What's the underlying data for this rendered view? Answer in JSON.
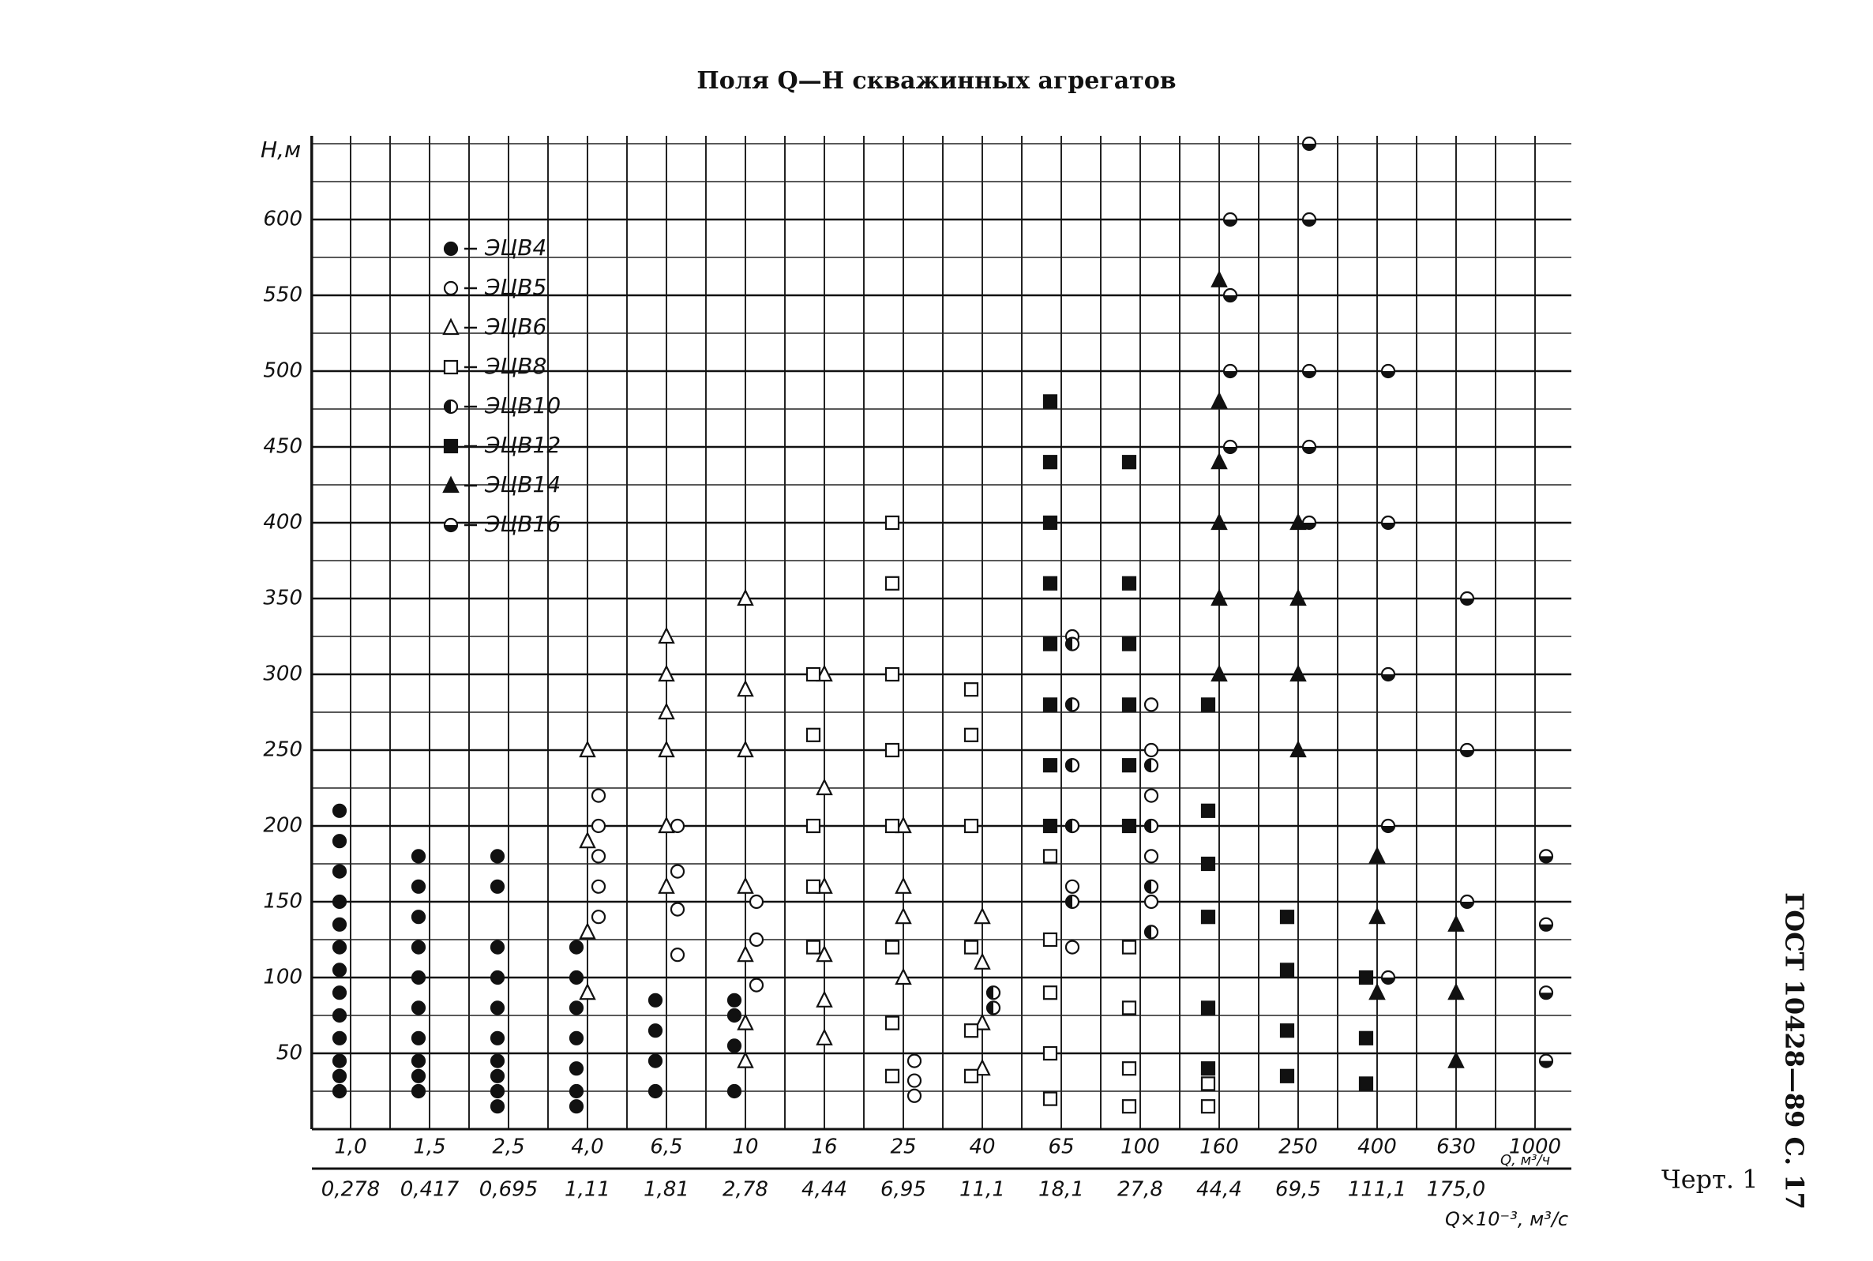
{
  "chart_data": {
    "type": "scatter",
    "title": "Поля Q—H скважинных агрегатов",
    "y_label": "H,м",
    "x_label": "Q, м³/ч",
    "x2_label": "Q×10⁻³, м³/с",
    "caption": "Черт. 1",
    "page_header": "ГОСТ 10428—89 С. 17",
    "categories": [
      "1,0",
      "1,5",
      "2,5",
      "4,0",
      "6,5",
      "10",
      "16",
      "25",
      "40",
      "65",
      "100",
      "160",
      "250",
      "400",
      "630",
      "1000"
    ],
    "categories2": [
      "0,278",
      "0,417",
      "0,695",
      "1,11",
      "1,81",
      "2,78",
      "4,44",
      "6,95",
      "11,1",
      "18,1",
      "27,8",
      "44,4",
      "69,5",
      "111,1",
      "175,0",
      null
    ],
    "ylim": [
      0,
      650
    ],
    "yticks": [
      50,
      100,
      150,
      200,
      250,
      300,
      350,
      400,
      450,
      500,
      550,
      600
    ],
    "grid": true,
    "series": [
      {
        "name": "ЭЦВ4",
        "marker": "circle",
        "fill": "solid",
        "color": "#111",
        "x": [
          "1,0",
          "1,0",
          "1,0",
          "1,0",
          "1,0",
          "1,0",
          "1,0",
          "1,0",
          "1,0",
          "1,0",
          "1,0",
          "1,0",
          "1,0",
          "1,5",
          "1,5",
          "1,5",
          "1,5",
          "1,5",
          "1,5",
          "1,5",
          "1,5",
          "1,5",
          "1,5",
          "2,5",
          "2,5",
          "2,5",
          "2,5",
          "2,5",
          "2,5",
          "2,5",
          "2,5",
          "2,5",
          "2,5",
          "4,0",
          "4,0",
          "4,0",
          "4,0",
          "4,0",
          "4,0",
          "4,0",
          "6,5",
          "6,5",
          "6,5",
          "6,5",
          "10",
          "10",
          "10",
          "10"
        ],
        "values": [
          25,
          35,
          45,
          60,
          75,
          90,
          105,
          120,
          135,
          150,
          170,
          190,
          210,
          25,
          35,
          45,
          60,
          80,
          100,
          120,
          140,
          160,
          180,
          15,
          25,
          35,
          45,
          60,
          80,
          100,
          120,
          160,
          180,
          15,
          25,
          40,
          60,
          80,
          100,
          120,
          25,
          45,
          65,
          85,
          25,
          55,
          75,
          85
        ]
      },
      {
        "name": "ЭЦВ5",
        "marker": "circle",
        "fill": "open",
        "color": "#111",
        "x": [
          "4,0",
          "4,0",
          "4,0",
          "4,0",
          "4,0",
          "6,5",
          "6,5",
          "6,5",
          "6,5",
          "10",
          "10",
          "10",
          "25",
          "25",
          "25",
          "65",
          "65",
          "65",
          "65",
          "65",
          "65",
          "100",
          "100",
          "100",
          "100",
          "100"
        ],
        "values": [
          140,
          160,
          180,
          200,
          220,
          115,
          145,
          170,
          200,
          95,
          125,
          150,
          22,
          32,
          45,
          120,
          160,
          200,
          240,
          280,
          325,
          150,
          180,
          220,
          250,
          280
        ]
      },
      {
        "name": "ЭЦВ6",
        "marker": "triangle",
        "fill": "open",
        "color": "#111",
        "x": [
          "4,0",
          "4,0",
          "4,0",
          "4,0",
          "6,5",
          "6,5",
          "6,5",
          "6,5",
          "6,5",
          "6,5",
          "10",
          "10",
          "10",
          "10",
          "10",
          "10",
          "10",
          "16",
          "16",
          "16",
          "16",
          "16",
          "16",
          "25",
          "25",
          "25",
          "25",
          "40",
          "40",
          "40",
          "40"
        ],
        "values": [
          90,
          130,
          190,
          250,
          160,
          200,
          250,
          275,
          300,
          325,
          45,
          70,
          115,
          160,
          250,
          290,
          350,
          60,
          85,
          115,
          160,
          225,
          300,
          100,
          140,
          160,
          200,
          40,
          70,
          110,
          140
        ]
      },
      {
        "name": "ЭЦВ8",
        "marker": "square",
        "fill": "open",
        "color": "#111",
        "x": [
          "16",
          "16",
          "16",
          "16",
          "16",
          "25",
          "25",
          "25",
          "25",
          "25",
          "25",
          "25",
          "25",
          "40",
          "40",
          "40",
          "40",
          "40",
          "40",
          "65",
          "65",
          "65",
          "65",
          "65",
          "100",
          "100",
          "100",
          "100",
          "160",
          "160"
        ],
        "values": [
          120,
          160,
          200,
          260,
          300,
          35,
          70,
          120,
          200,
          250,
          300,
          360,
          400,
          35,
          65,
          120,
          200,
          260,
          290,
          20,
          50,
          90,
          125,
          180,
          15,
          40,
          80,
          120,
          15,
          30
        ]
      },
      {
        "name": "ЭЦВ10",
        "marker": "circle",
        "fill": "half-left",
        "color": "#111",
        "x": [
          "40",
          "40",
          "65",
          "65",
          "65",
          "65",
          "65",
          "100",
          "100",
          "100",
          "100"
        ],
        "values": [
          80,
          90,
          150,
          200,
          240,
          280,
          320,
          130,
          160,
          200,
          240
        ]
      },
      {
        "name": "ЭЦВ12",
        "marker": "square",
        "fill": "solid",
        "color": "#111",
        "x": [
          "65",
          "65",
          "65",
          "65",
          "65",
          "65",
          "65",
          "65",
          "100",
          "100",
          "100",
          "100",
          "100",
          "100",
          "160",
          "160",
          "160",
          "160",
          "160",
          "160",
          "250",
          "250",
          "250",
          "250",
          "400",
          "400",
          "400"
        ],
        "values": [
          200,
          240,
          280,
          320,
          360,
          400,
          440,
          480,
          200,
          240,
          280,
          320,
          360,
          440,
          40,
          80,
          140,
          175,
          210,
          280,
          35,
          65,
          105,
          140,
          30,
          60,
          100
        ]
      },
      {
        "name": "ЭЦВ14",
        "marker": "triangle",
        "fill": "solid",
        "color": "#111",
        "x": [
          "160",
          "160",
          "160",
          "160",
          "160",
          "160",
          "250",
          "250",
          "250",
          "250",
          "400",
          "400",
          "400",
          "630",
          "630",
          "630"
        ],
        "values": [
          300,
          350,
          400,
          440,
          480,
          560,
          250,
          300,
          350,
          400,
          90,
          140,
          180,
          45,
          90,
          135
        ]
      },
      {
        "name": "ЭЦВ16",
        "marker": "circle",
        "fill": "half-bottom",
        "color": "#111",
        "x": [
          "160",
          "160",
          "160",
          "160",
          "250",
          "250",
          "250",
          "250",
          "250",
          "400",
          "400",
          "400",
          "400",
          "400",
          "630",
          "630",
          "630",
          "1000",
          "1000",
          "1000",
          "1000"
        ],
        "values": [
          450,
          500,
          550,
          600,
          400,
          450,
          500,
          600,
          650,
          100,
          200,
          300,
          400,
          500,
          150,
          250,
          350,
          45,
          90,
          135,
          180
        ]
      }
    ]
  }
}
